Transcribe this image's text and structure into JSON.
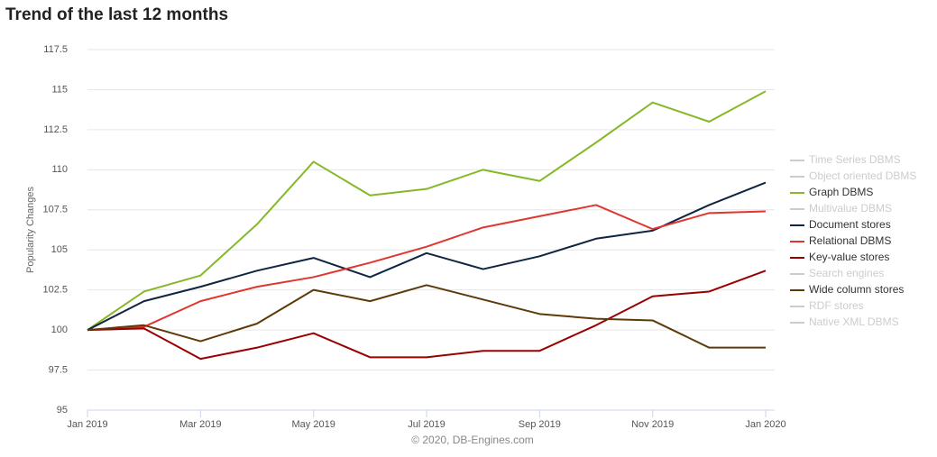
{
  "chart_data": {
    "type": "line",
    "title": "Trend of the last 12 months",
    "ylabel": "Popularity Changes",
    "credit": "© 2020, DB-Engines.com",
    "categories": [
      "Jan 2019",
      null,
      "Mar 2019",
      null,
      "May 2019",
      null,
      "Jul 2019",
      null,
      "Sep 2019",
      null,
      "Nov 2019",
      null,
      "Jan 2020"
    ],
    "ylim": [
      95,
      117.5
    ],
    "yticks": [
      95,
      97.5,
      100,
      102.5,
      105,
      107.5,
      110,
      112.5,
      115,
      117.5
    ],
    "grid": true,
    "legend": "right",
    "series": [
      {
        "name": "Time Series DBMS",
        "color": "#cccccc",
        "visible": false
      },
      {
        "name": "Object oriented DBMS",
        "color": "#cccccc",
        "visible": false
      },
      {
        "name": "Graph DBMS",
        "color": "#86b828",
        "visible": true,
        "values": [
          100,
          102.4,
          103.4,
          106.6,
          110.5,
          108.4,
          108.8,
          110.0,
          109.3,
          111.7,
          114.2,
          113.0,
          114.9
        ]
      },
      {
        "name": "Multivalue DBMS",
        "color": "#cccccc",
        "visible": false
      },
      {
        "name": "Document stores",
        "color": "#0f2541",
        "visible": true,
        "values": [
          100,
          101.8,
          102.7,
          103.7,
          104.5,
          103.3,
          104.8,
          103.8,
          104.6,
          105.7,
          106.2,
          107.8,
          109.2
        ]
      },
      {
        "name": "Relational DBMS",
        "color": "#e0362f",
        "visible": true,
        "values": [
          100,
          100.2,
          101.8,
          102.7,
          103.3,
          104.2,
          105.2,
          106.4,
          107.1,
          107.8,
          106.3,
          107.3,
          107.4
        ]
      },
      {
        "name": "Key-value stores",
        "color": "#990000",
        "visible": true,
        "values": [
          100,
          100.1,
          98.2,
          98.9,
          99.8,
          98.3,
          98.3,
          98.7,
          98.7,
          100.3,
          102.1,
          102.4,
          103.7
        ]
      },
      {
        "name": "Search engines",
        "color": "#cccccc",
        "visible": false
      },
      {
        "name": "Wide column stores",
        "color": "#5e3a08",
        "visible": true,
        "values": [
          100,
          100.3,
          99.3,
          100.4,
          102.5,
          101.8,
          102.8,
          101.9,
          101.0,
          100.7,
          100.6,
          98.9,
          98.9
        ]
      },
      {
        "name": "RDF stores",
        "color": "#cccccc",
        "visible": false
      },
      {
        "name": "Native XML DBMS",
        "color": "#cccccc",
        "visible": false
      }
    ]
  }
}
